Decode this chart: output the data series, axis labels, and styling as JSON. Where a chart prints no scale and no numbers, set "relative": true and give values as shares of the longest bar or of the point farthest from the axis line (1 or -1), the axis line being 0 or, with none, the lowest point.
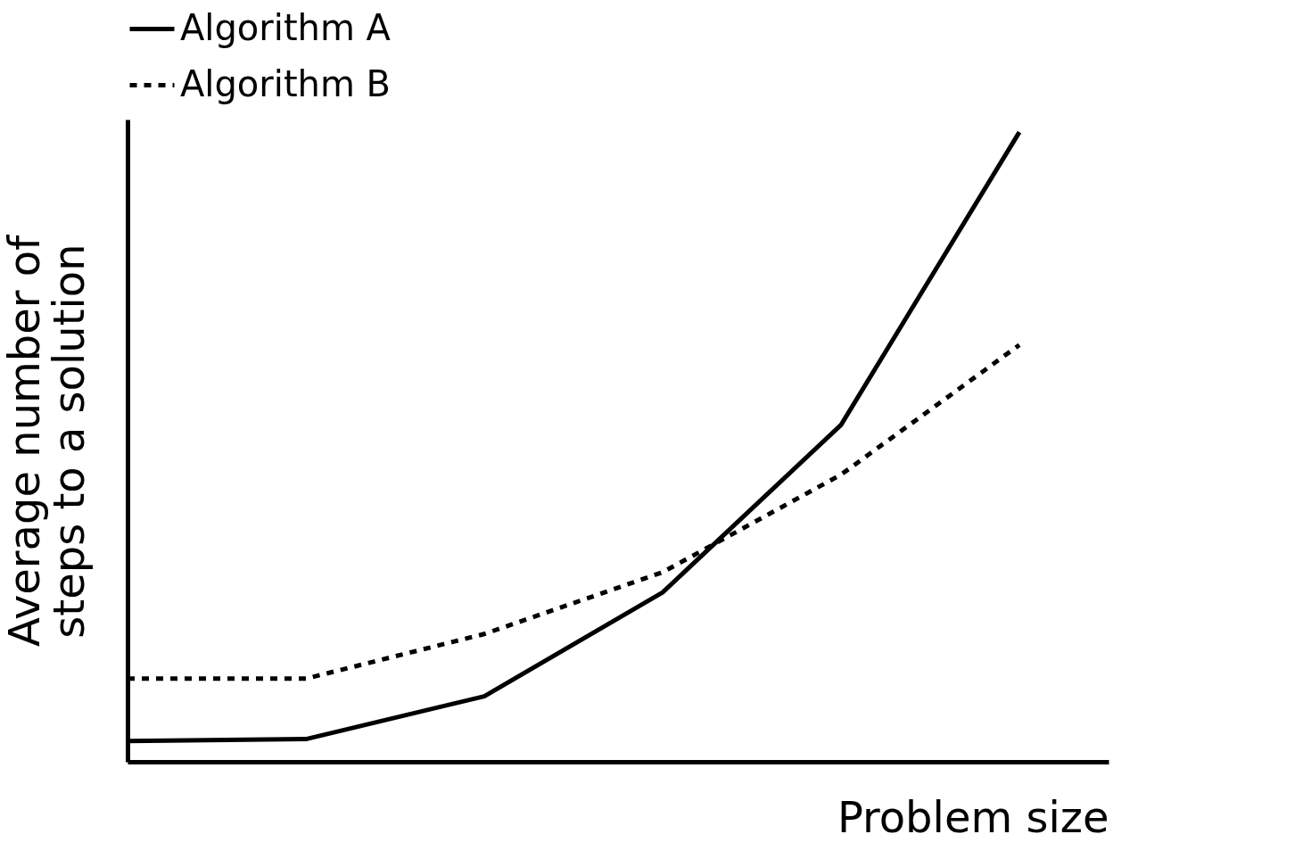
{
  "chart_data": {
    "type": "line",
    "relative": true,
    "xlabel": "Problem size",
    "ylabel": "Average number of steps to a solution",
    "categories": [
      null,
      null,
      null,
      null,
      null,
      null
    ],
    "legend": "top",
    "grid": false,
    "marker": "none",
    "series": [
      {
        "name": "Algorithm A",
        "color": "#000000",
        "line_style": "solid",
        "values": [
          0.033,
          0.036,
          0.104,
          0.269,
          0.535,
          1.0
        ]
      },
      {
        "name": "Algorithm B",
        "color": "#000000",
        "line_style": "dotted",
        "values": [
          0.132,
          0.132,
          0.203,
          0.301,
          0.456,
          0.662
        ]
      }
    ]
  }
}
